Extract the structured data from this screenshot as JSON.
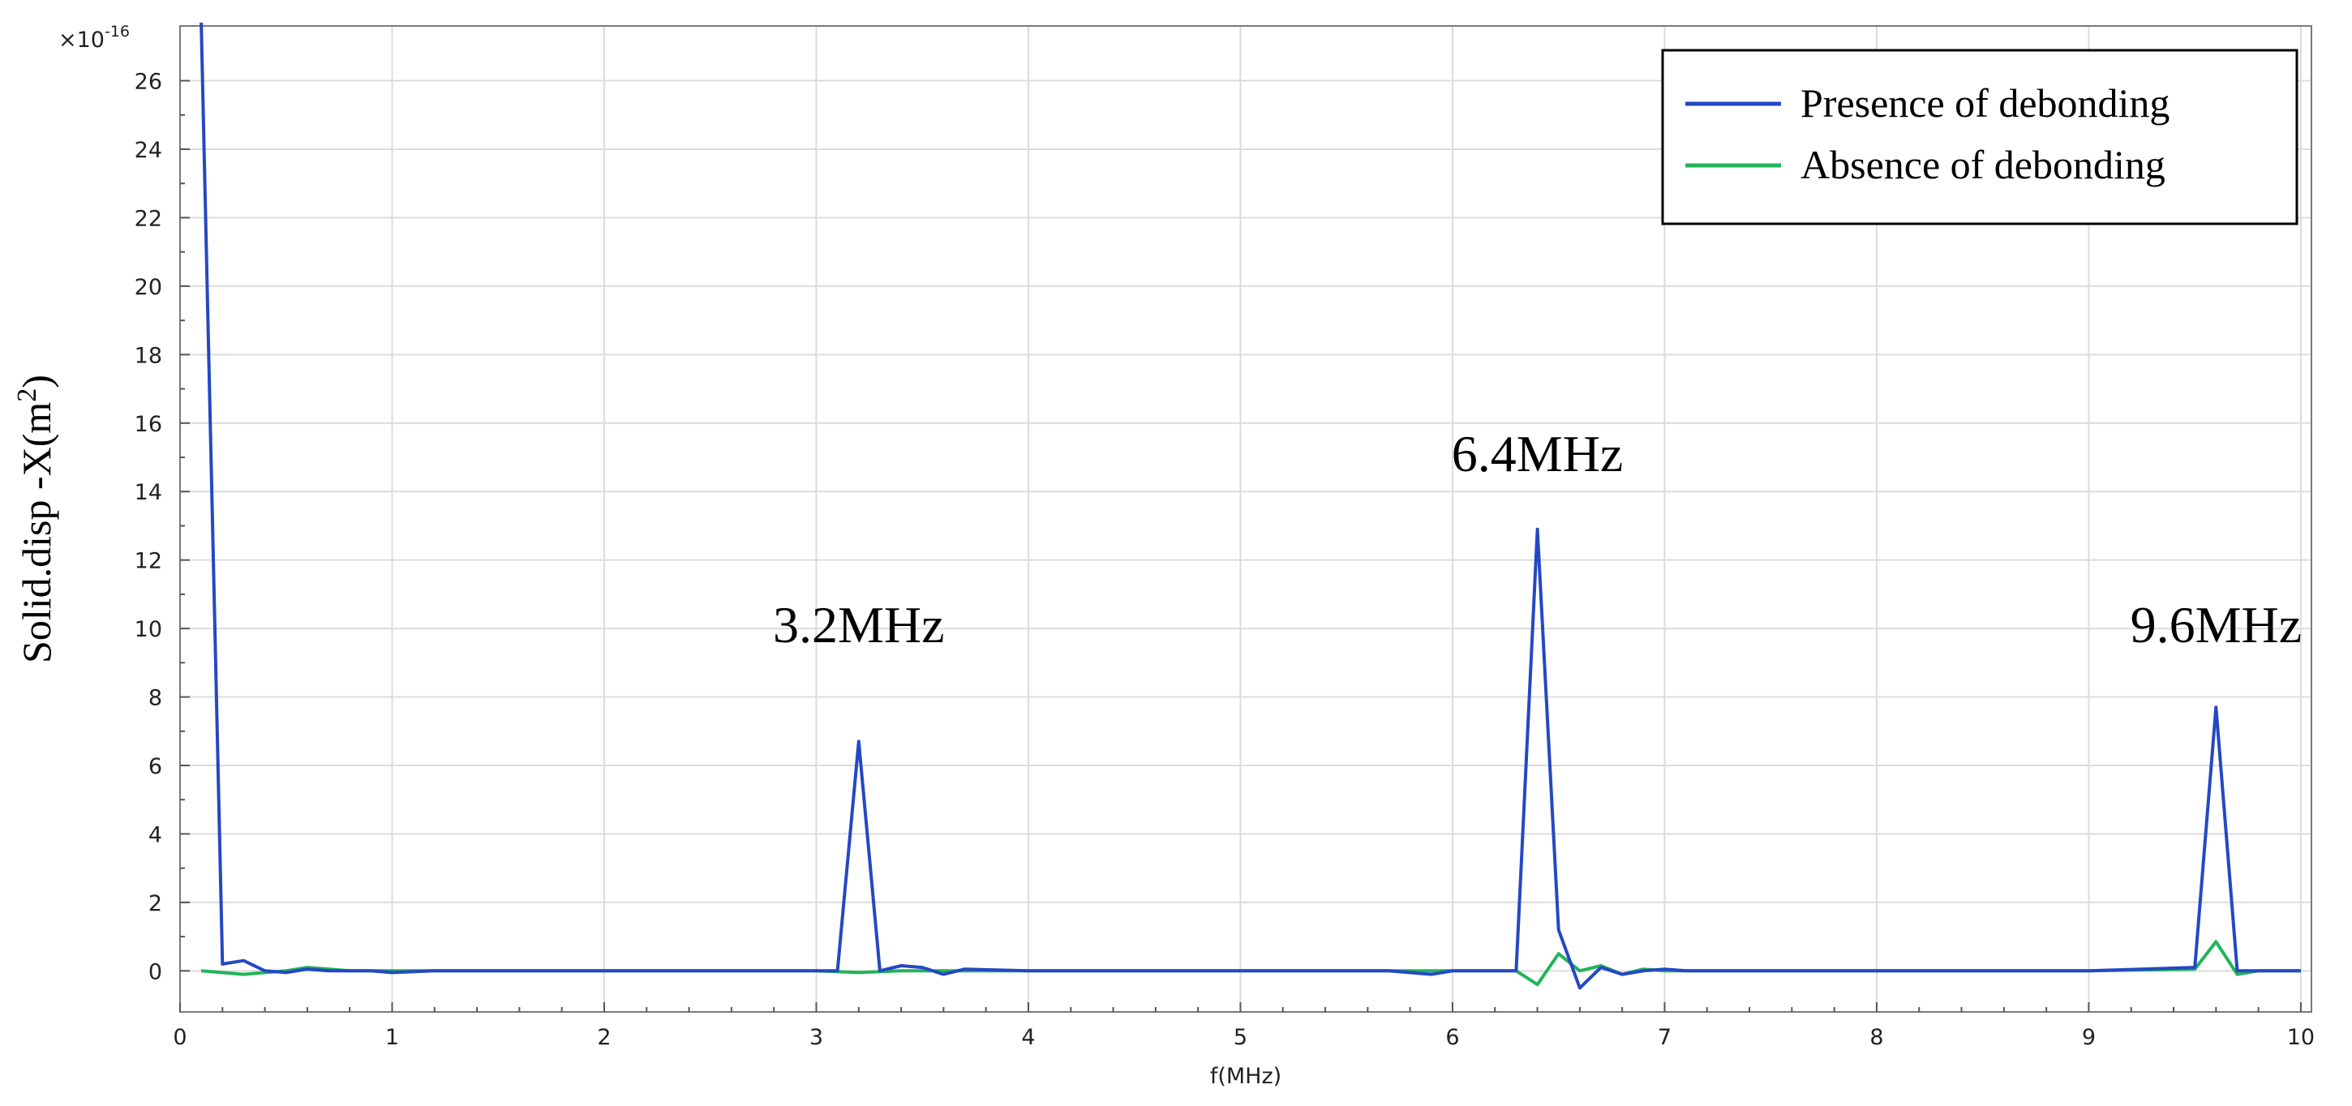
{
  "chart_data": {
    "type": "line",
    "xlabel": "f(MHz)",
    "ylabel": "Solid.disp -X(m",
    "ylabel_sup": "2",
    "ylabel_close": ")",
    "y_multiplier_base": "×10",
    "y_multiplier_exp": "-16",
    "xlim": [
      0,
      10.05
    ],
    "ylim": [
      -1.2,
      27.6
    ],
    "xticks": [
      0,
      1,
      2,
      3,
      4,
      5,
      6,
      7,
      8,
      9,
      10
    ],
    "yticks": [
      0,
      2,
      4,
      6,
      8,
      10,
      12,
      14,
      16,
      18,
      20,
      22,
      24,
      26
    ],
    "grid": true,
    "legend_position": "top-right",
    "series": [
      {
        "name": "Presence of debonding",
        "color": "#2448c4",
        "x": [
          0.1,
          0.2,
          0.3,
          0.4,
          0.5,
          0.6,
          0.7,
          0.8,
          0.9,
          1.0,
          1.2,
          1.5,
          2.0,
          2.5,
          3.0,
          3.1,
          3.2,
          3.3,
          3.4,
          3.5,
          3.6,
          3.7,
          4.0,
          5.0,
          5.7,
          5.9,
          6.0,
          6.3,
          6.4,
          6.5,
          6.6,
          6.7,
          6.8,
          6.9,
          7.0,
          7.1,
          8.0,
          9.0,
          9.5,
          9.6,
          9.7,
          9.8,
          10.0
        ],
        "y": [
          27.7,
          0.2,
          0.3,
          0.0,
          -0.05,
          0.05,
          0.0,
          0.0,
          0.0,
          -0.05,
          0.0,
          0.0,
          0.0,
          0.0,
          0.0,
          0.0,
          6.7,
          0.0,
          0.15,
          0.1,
          -0.1,
          0.05,
          0.0,
          0.0,
          0.0,
          -0.1,
          0.0,
          0.0,
          12.9,
          1.2,
          -0.5,
          0.1,
          -0.1,
          0.0,
          0.05,
          0.0,
          0.0,
          0.0,
          0.1,
          7.7,
          0.0,
          0.0,
          0.0
        ]
      },
      {
        "name": "Absence of debonding",
        "color": "#22b35a",
        "x": [
          0.1,
          0.3,
          0.5,
          0.6,
          0.8,
          1.0,
          2.0,
          3.0,
          3.2,
          3.4,
          4.0,
          5.0,
          6.0,
          6.3,
          6.4,
          6.5,
          6.6,
          6.7,
          6.8,
          6.9,
          7.0,
          8.0,
          9.0,
          9.5,
          9.6,
          9.7,
          9.8,
          10.0
        ],
        "y": [
          0.0,
          -0.1,
          0.0,
          0.1,
          0.0,
          0.0,
          0.0,
          0.0,
          -0.05,
          0.0,
          0.0,
          0.0,
          0.0,
          0.0,
          -0.4,
          0.5,
          0.0,
          0.15,
          -0.1,
          0.05,
          0.0,
          0.0,
          0.0,
          0.05,
          0.85,
          -0.1,
          0.0,
          0.0
        ]
      }
    ],
    "annotations": [
      {
        "text": "3.2MHz",
        "x": 3.2,
        "y": 9.6
      },
      {
        "text": "6.4MHz",
        "x": 6.4,
        "y": 14.6
      },
      {
        "text": "9.6MHz",
        "x": 9.6,
        "y": 9.6
      }
    ]
  }
}
